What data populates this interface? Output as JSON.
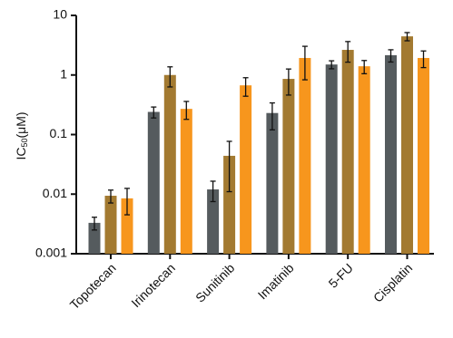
{
  "chart_data": {
    "type": "bar",
    "y_scale": "log",
    "y_label": {
      "main": "IC",
      "sub": "50",
      "unit": "(μM)"
    },
    "categories": [
      "Topotecan",
      "Irinotecan",
      "Sunitinib",
      "Imatinib",
      "5-FU",
      "Cisplatin"
    ],
    "series": [
      {
        "color": "#555b5e",
        "values": [
          0.0033,
          0.24,
          0.012,
          0.23,
          1.5,
          2.15
        ],
        "errors": [
          0.0008,
          0.05,
          0.0045,
          0.11,
          0.23,
          0.5
        ]
      },
      {
        "color": "#a37a31",
        "values": [
          0.0094,
          1.0,
          0.044,
          0.86,
          2.64,
          4.45
        ],
        "errors": [
          0.0023,
          0.37,
          0.033,
          0.4,
          1.0,
          0.7
        ]
      },
      {
        "color": "#f7961d",
        "values": [
          0.0085,
          0.27,
          0.67,
          1.93,
          1.4,
          1.93
        ],
        "errors": [
          0.004,
          0.09,
          0.23,
          1.1,
          0.35,
          0.6
        ]
      }
    ],
    "ylim": [
      0.001,
      10
    ],
    "yticks": [
      0.001,
      0.01,
      0.1,
      1,
      10
    ]
  }
}
